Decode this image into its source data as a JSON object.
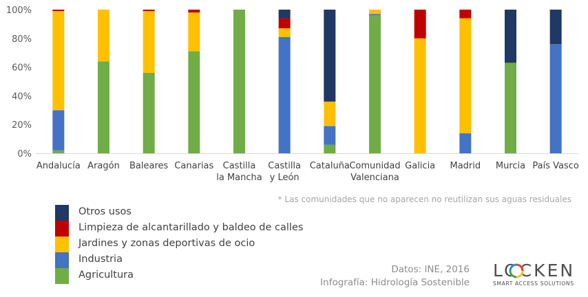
{
  "chart_data": {
    "type": "bar",
    "stacked": true,
    "normalized": true,
    "categories": [
      [
        "Andalucía"
      ],
      [
        "Aragón"
      ],
      [
        "Baleares"
      ],
      [
        "Canarias"
      ],
      [
        "Castilla",
        "la Mancha"
      ],
      [
        "Castilla",
        "y León"
      ],
      [
        "Cataluña"
      ],
      [
        "Comunidad",
        "Valenciana"
      ],
      [
        "Galicia"
      ],
      [
        "Madrid"
      ],
      [
        "Murcia"
      ],
      [
        "País Vasco"
      ]
    ],
    "series": [
      {
        "name": "Agricultura",
        "color": "#70ad47",
        "values": [
          2,
          64,
          56,
          71,
          100,
          0,
          6,
          96,
          0,
          0,
          63,
          0
        ]
      },
      {
        "name": "Industria",
        "color": "#4472c4",
        "values": [
          28,
          0,
          0,
          0,
          0,
          81,
          13,
          1,
          0,
          14,
          0,
          76
        ]
      },
      {
        "name": "Jardines y zonas deportivas de ocio",
        "color": "#ffc000",
        "values": [
          69,
          36,
          43,
          27,
          0,
          6,
          17,
          3,
          80,
          80,
          0,
          0
        ]
      },
      {
        "name": "Limpieza de alcantarillado y baldeo de calles",
        "color": "#c00000",
        "values": [
          1,
          0,
          1,
          2,
          0,
          7,
          0,
          0,
          20,
          6,
          0,
          0
        ]
      },
      {
        "name": "Otros usos",
        "color": "#1f3864",
        "values": [
          0,
          0,
          0,
          0,
          0,
          6,
          64,
          0,
          0,
          0,
          37,
          24
        ]
      }
    ],
    "yticks": [
      "0%",
      "20%",
      "40%",
      "60%",
      "80%",
      "100%"
    ],
    "ylim": [
      0,
      100
    ],
    "legend_position": "bottom-left"
  },
  "footnote": "* Las comunidades que no aparecen no reutilizan sus aguas residuales",
  "source": {
    "line1": "Datos: INE, 2016",
    "line2": "Infografía: Hidrología Sostenible"
  },
  "logo": {
    "word": "LOCKEN",
    "tagline": "SMART ACCESS SOLUTIONS"
  }
}
